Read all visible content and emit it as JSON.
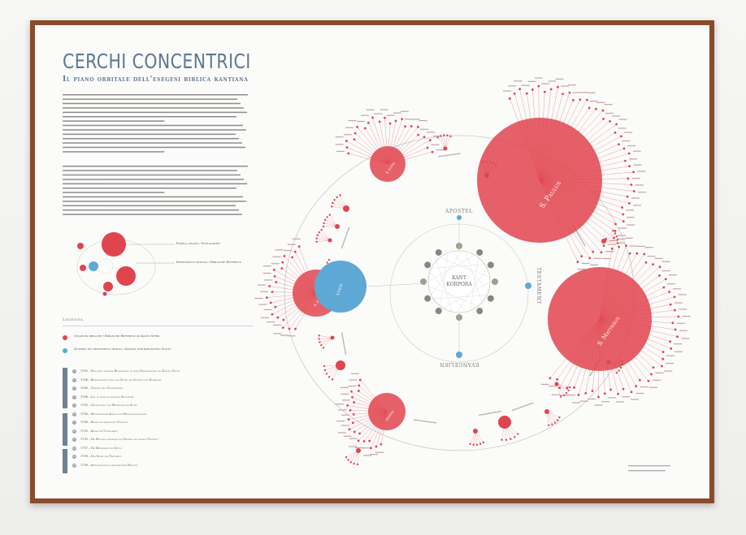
{
  "poster": {
    "title": "CERCHI CONCENTRICI",
    "subtitle": "Il piano orbitale dell'esegesi biblica kantiana"
  },
  "inset": {
    "label_primary": "Parola chiave / Schlagwort",
    "label_secondary": "Riferimento biblico / Biblische Referenz"
  },
  "center": {
    "line1": "KANT",
    "line2": "KORPORA"
  },
  "orbit_labels": {
    "top": "APOSTEL",
    "right": "TESTAMENT",
    "bottom": "EVANGELIEN",
    "blue_left": "Lukas"
  },
  "legend": {
    "title": "Legenda",
    "red_item": "Citazioni bibliche / Biblische Referenz im Kants Werk",
    "blue_item": "Numero dei riferimenti biblici / Anzahl der biblischen Zitate"
  },
  "timeline": [
    {
      "num": "1",
      "text": "1763 – Der einzig mögliche Beweisgrund zu einer Demonstration des Daseins Gottes"
    },
    {
      "num": "2",
      "text": "1764 – Beobachtungen über das Gefühl des Schönen und Erhabenen"
    },
    {
      "num": "3",
      "text": "1766 – Träume eines Geistersehers"
    },
    {
      "num": "4",
      "text": "1784 – Idee zu einer allgemeinen Geschichte"
    },
    {
      "num": "5",
      "text": "1785 – Grundlegung zur Metaphysik der Sitten"
    },
    {
      "num": "6",
      "text": "1786 – Mutmaßlicher Anfang der Menschengeschichte"
    },
    {
      "num": "7",
      "text": "1788 – Kritik der praktischen Vernunft"
    },
    {
      "num": "8",
      "text": "1790 – Kritik der Urteilskraft"
    },
    {
      "num": "9",
      "text": "1793 – Die Religion innerhalb der Grenzen der bloßen Vernunft"
    },
    {
      "num": "10",
      "text": "1797 – Die Metaphysik der Sitten"
    },
    {
      "num": "11",
      "text": "1798 – Der Streit der Fakultäten"
    },
    {
      "num": "12",
      "text": "1798 – Anthropologie in pragmatischer Hinsicht"
    }
  ],
  "colors": {
    "red": "#e0444e",
    "red_light": "#ee7b82",
    "blue": "#5ea8d6",
    "frame": "#8a4a2c",
    "title": "#5f7890",
    "line": "#c9c9c9"
  },
  "books": {
    "paulus": "S. Paulus",
    "matthaeus": "S. Matthäus",
    "lukas": "S. Lukas",
    "johannes": "S. Johannes",
    "genesis": "Genesis"
  }
}
